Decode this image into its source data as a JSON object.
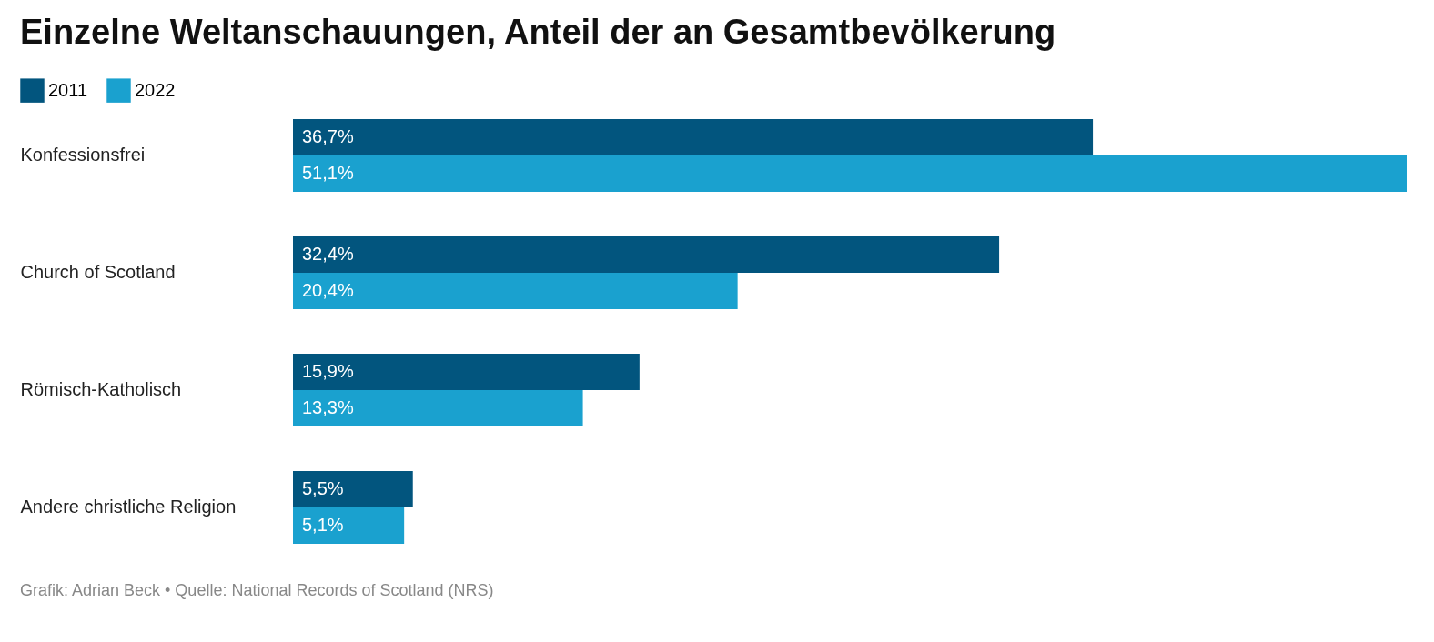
{
  "chart_data": {
    "type": "bar",
    "orientation": "horizontal",
    "title": "Einzelne Weltanschauungen, Anteil der an Gesamtbevölkerung",
    "categories": [
      "Konfessionsfrei",
      "Church of Scotland",
      "Römisch-Katholisch",
      "Andere christliche Religion"
    ],
    "series": [
      {
        "name": "2011",
        "color": "#02557e",
        "values": [
          36.7,
          32.4,
          15.9,
          5.5
        ],
        "value_labels": [
          "36,7%",
          "32,4%",
          "15,9%",
          "5,5%"
        ]
      },
      {
        "name": "2022",
        "color": "#1aa1cf",
        "values": [
          51.1,
          20.4,
          13.3,
          5.1
        ],
        "value_labels": [
          "51,1%",
          "20,4%",
          "13,3%",
          "5,1%"
        ]
      }
    ],
    "legend": "top left",
    "grid": false,
    "annotations": [
      "Grafik: Adrian Beck • Quelle: National Records of Scotland (NRS)"
    ]
  }
}
